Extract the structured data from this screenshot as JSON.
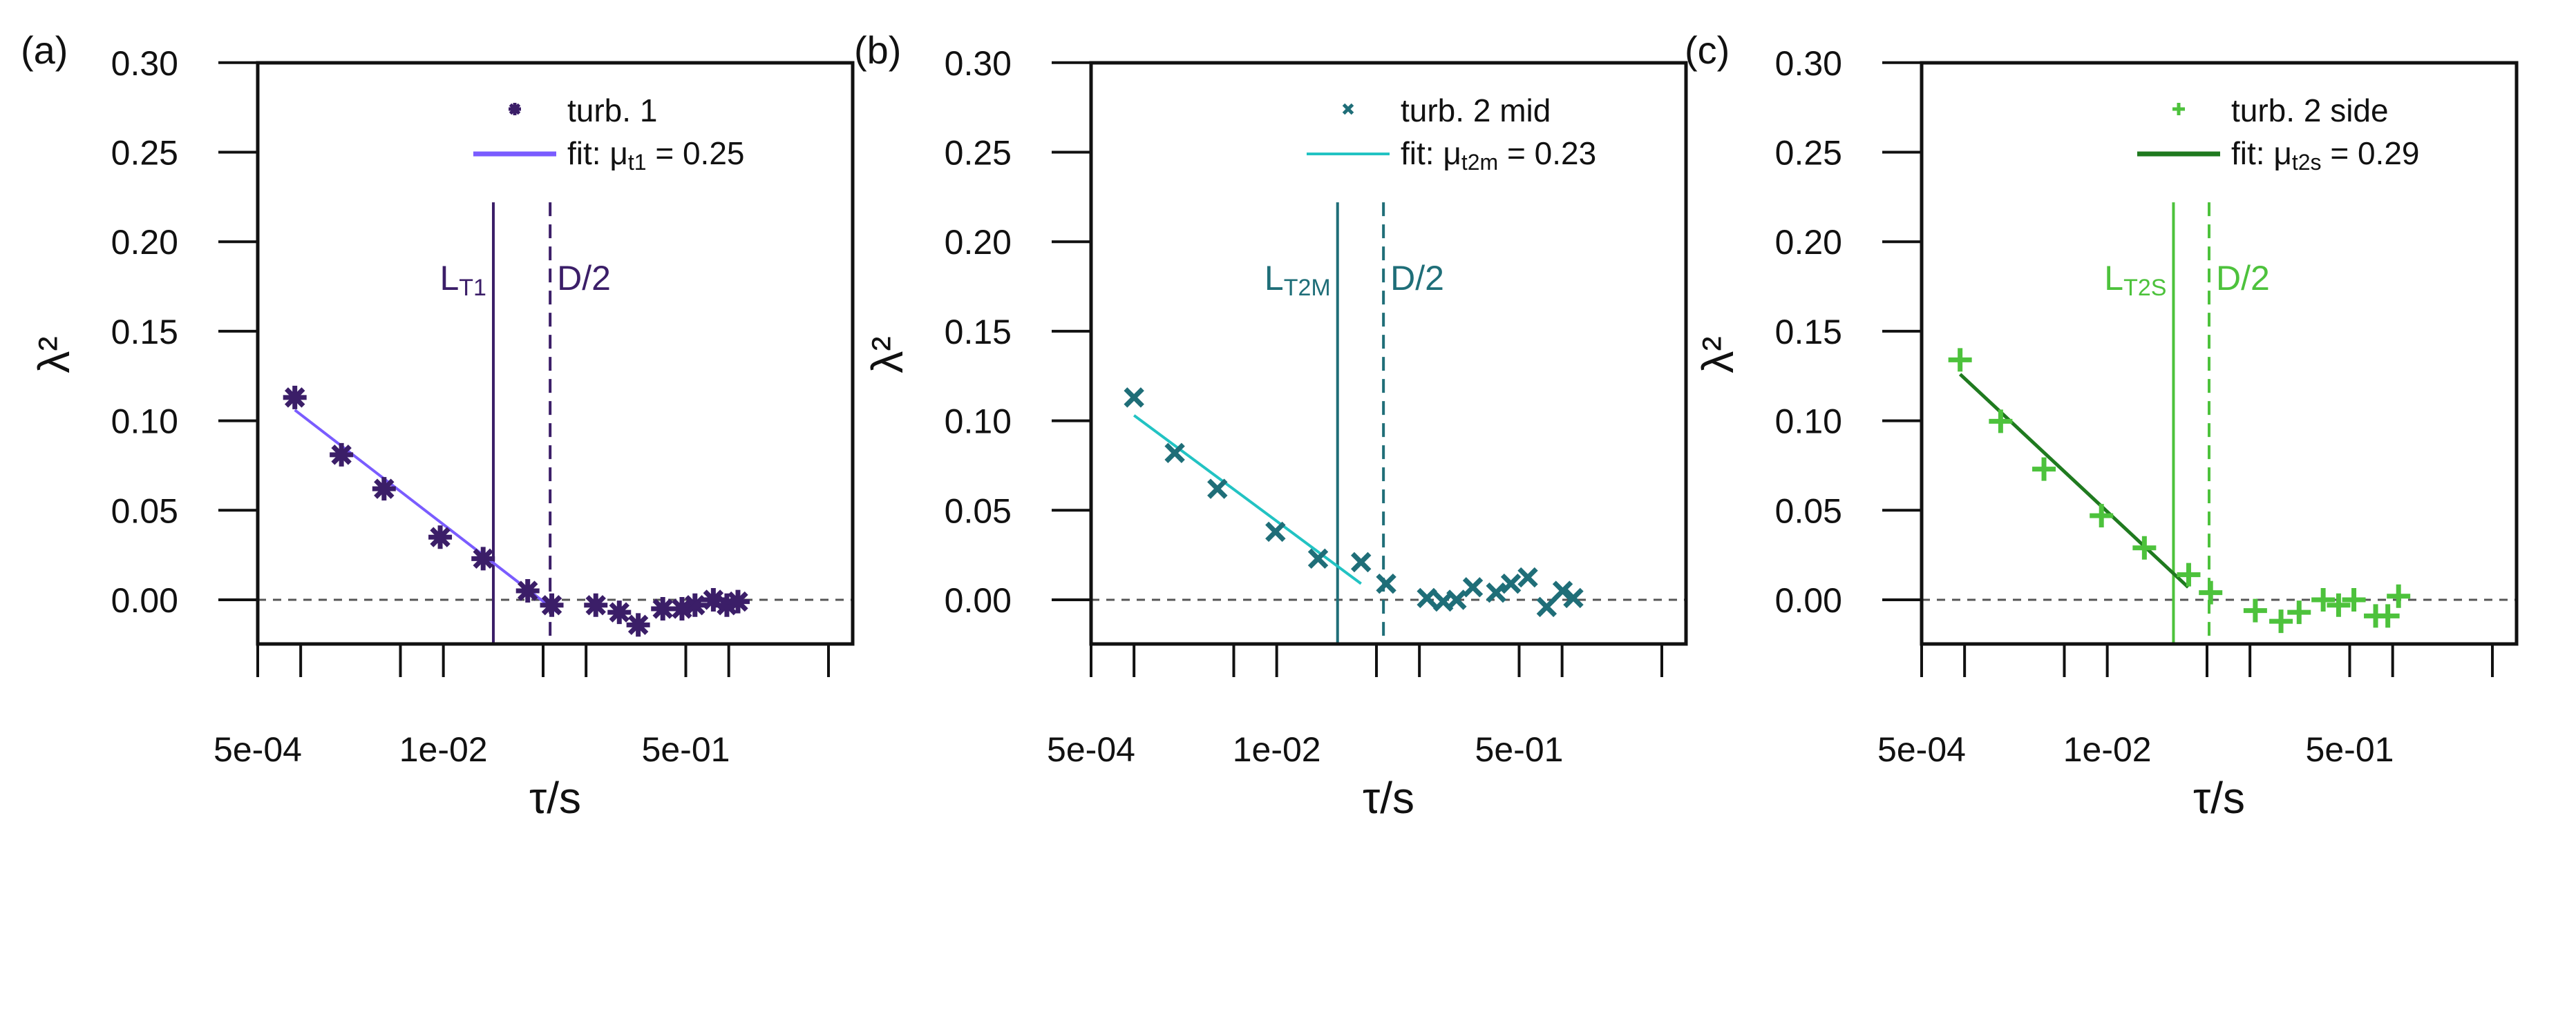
{
  "chart_data": [
    {
      "type": "scatter",
      "panel_label": "(a)",
      "xlabel": "τ/s",
      "ylabel": "λ²",
      "x_scale": "log",
      "x_ticks": [
        0.0005,
        0.001,
        0.005,
        0.01,
        0.05,
        0.1,
        0.5,
        1,
        5
      ],
      "x_tick_labels": {
        "0.0005": "5e-04",
        "0.01": "1e-02",
        "0.5": "5e-01"
      },
      "y_ticks": [
        "0.00",
        "0.05",
        "0.10",
        "0.15",
        "0.20",
        "0.25",
        "0.30"
      ],
      "ylim": [
        -0.025,
        0.3
      ],
      "xlim_log10": [
        -3.301,
        0.87
      ],
      "legend_placement": "top-right",
      "series": [
        {
          "name": "turb. 1",
          "marker": "asterisk",
          "color": "#3b1e68",
          "x": [
            0.00091,
            0.00193,
            0.00384,
            0.0095,
            0.019,
            0.039,
            0.0575,
            0.117,
            0.171,
            0.232,
            0.345,
            0.47,
            0.58,
            0.78,
            0.97,
            1.16
          ],
          "y": [
            0.113,
            0.081,
            0.062,
            0.035,
            0.023,
            0.005,
            -0.003,
            -0.003,
            -0.007,
            -0.014,
            -0.005,
            -0.005,
            -0.003,
            0.0,
            -0.003,
            -0.001
          ]
        }
      ],
      "fit": {
        "label_prefix": "fit: ",
        "mu_symbol": "μ",
        "mu_sub": "t1",
        "value_text": " = 0.25",
        "color": "#7a5cff",
        "x": [
          0.00091,
          0.063
        ],
        "y": [
          0.106,
          -0.007
        ]
      },
      "vlines": [
        {
          "label": "L",
          "sub": "T1",
          "x": 0.0224,
          "style": "solid",
          "color": "#3b1e68"
        },
        {
          "label": "D/2",
          "sub": "",
          "x": 0.056,
          "style": "dashed",
          "color": "#3b1e68"
        }
      ],
      "vline_top": 0.222
    },
    {
      "type": "scatter",
      "panel_label": "(b)",
      "xlabel": "τ/s",
      "ylabel": "λ²",
      "x_scale": "log",
      "x_ticks": [
        0.0005,
        0.001,
        0.005,
        0.01,
        0.05,
        0.1,
        0.5,
        1,
        5
      ],
      "x_tick_labels": {
        "0.0005": "5e-04",
        "0.01": "1e-02",
        "0.5": "5e-01"
      },
      "y_ticks": [
        "0.00",
        "0.05",
        "0.10",
        "0.15",
        "0.20",
        "0.25",
        "0.30"
      ],
      "ylim": [
        -0.025,
        0.3
      ],
      "xlim_log10": [
        -3.301,
        0.87
      ],
      "legend_placement": "top-right",
      "series": [
        {
          "name": "turb. 2 mid",
          "marker": "cross",
          "color": "#1f6e78",
          "x": [
            0.001,
            0.00193,
            0.00384,
            0.0098,
            0.0195,
            0.039,
            0.0585,
            0.113,
            0.147,
            0.182,
            0.237,
            0.345,
            0.438,
            0.575,
            0.78,
            1.01,
            1.2
          ],
          "y": [
            0.113,
            0.082,
            0.062,
            0.038,
            0.023,
            0.021,
            0.009,
            0.001,
            -0.001,
            0.0,
            0.007,
            0.004,
            0.009,
            0.0125,
            -0.004,
            0.005,
            0.001
          ]
        }
      ],
      "fit": {
        "label_prefix": "fit: ",
        "mu_symbol": "μ",
        "mu_sub": "t2m",
        "value_text": " = 0.23",
        "color": "#22c3c3",
        "x": [
          0.001,
          0.039
        ],
        "y": [
          0.103,
          0.009
        ]
      },
      "vlines": [
        {
          "label": "L",
          "sub": "T2M",
          "x": 0.0267,
          "style": "solid",
          "color": "#1f6e78"
        },
        {
          "label": "D/2",
          "sub": "",
          "x": 0.056,
          "style": "dashed",
          "color": "#1f6e78"
        }
      ],
      "vline_top": 0.222
    },
    {
      "type": "scatter",
      "panel_label": "(c)",
      "xlabel": "τ/s",
      "ylabel": "λ²",
      "x_scale": "log",
      "x_ticks": [
        0.0005,
        0.001,
        0.005,
        0.01,
        0.05,
        0.1,
        0.5,
        1,
        5
      ],
      "x_tick_labels": {
        "0.0005": "5e-04",
        "0.01": "1e-02",
        "0.5": "5e-01"
      },
      "y_ticks": [
        "0.00",
        "0.05",
        "0.10",
        "0.15",
        "0.20",
        "0.25",
        "0.30"
      ],
      "ylim": [
        -0.025,
        0.3
      ],
      "xlim_log10": [
        -3.301,
        0.87
      ],
      "legend_placement": "top-right",
      "series": [
        {
          "name": "turb. 2 side",
          "marker": "plus",
          "color": "#4dc23c",
          "x": [
            0.00093,
            0.00179,
            0.0036,
            0.0091,
            0.0182,
            0.0372,
            0.053,
            0.109,
            0.165,
            0.221,
            0.326,
            0.418,
            0.535,
            0.76,
            0.925,
            1.1
          ],
          "y": [
            0.134,
            0.0997,
            0.073,
            0.047,
            0.029,
            0.014,
            0.004,
            -0.006,
            -0.012,
            -0.007,
            0.0,
            -0.003,
            0.0,
            -0.009,
            -0.009,
            0.002
          ]
        }
      ],
      "fit": {
        "label_prefix": "fit: ",
        "mu_symbol": "μ",
        "mu_sub": "t2s",
        "value_text": " = 0.29",
        "color": "#1f7a1f",
        "x": [
          0.00093,
          0.0369
        ],
        "y": [
          0.126,
          0.007
        ]
      },
      "vlines": [
        {
          "label": "L",
          "sub": "T2S",
          "x": 0.0291,
          "style": "solid",
          "color": "#4dc23c"
        },
        {
          "label": "D/2",
          "sub": "",
          "x": 0.0517,
          "style": "dashed",
          "color": "#4dc23c"
        }
      ],
      "vline_top": 0.222
    }
  ]
}
